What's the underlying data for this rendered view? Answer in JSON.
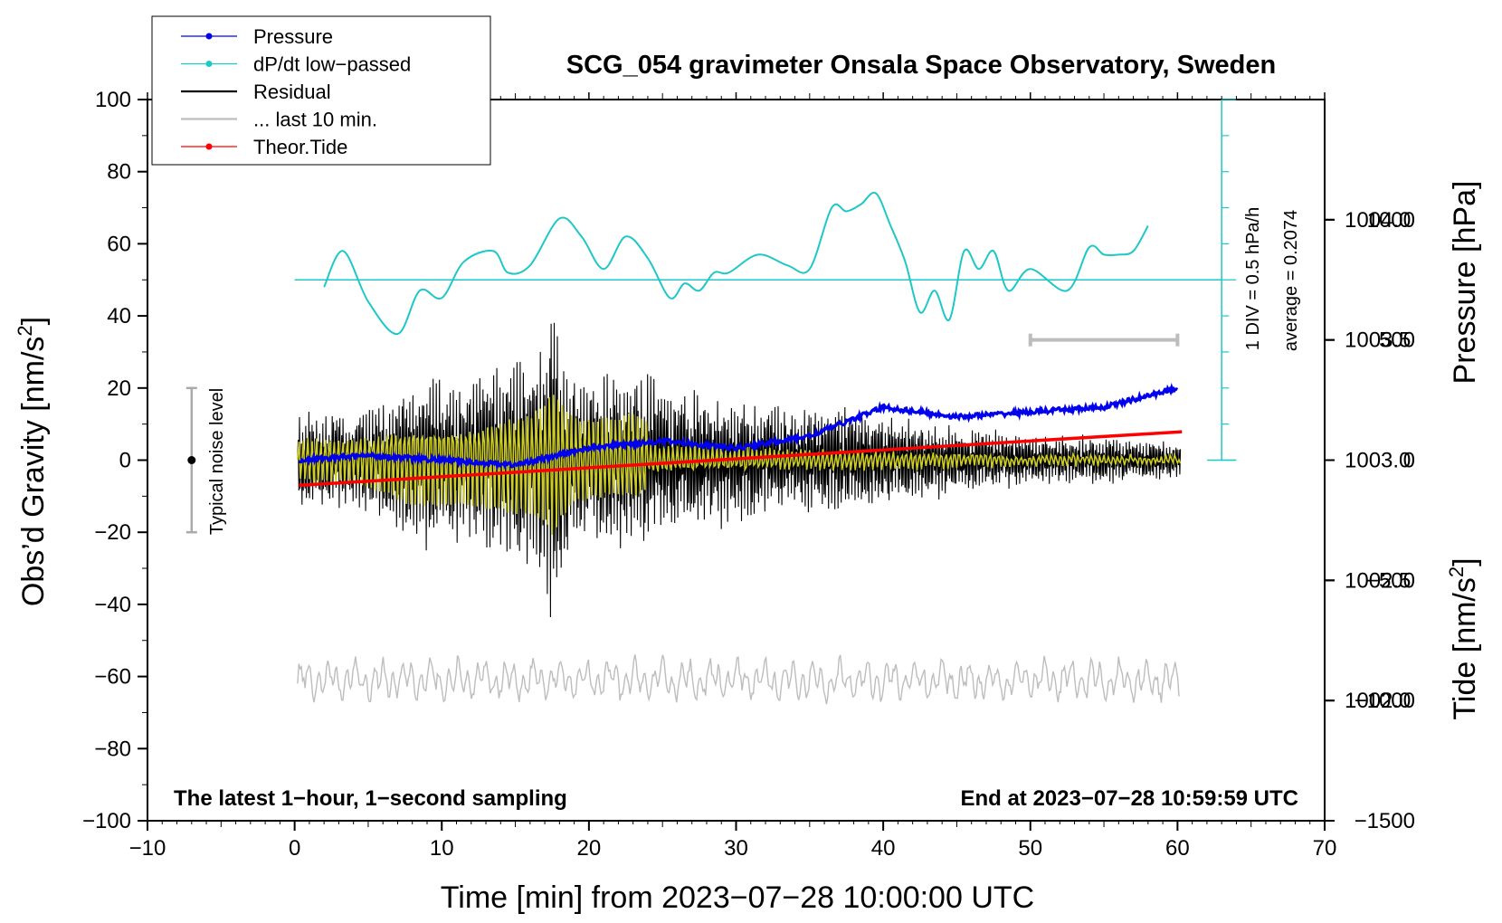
{
  "chart_data": {
    "type": "line",
    "title": "SCG_054 gravimeter Onsala Space Observatory, Sweden",
    "xlabel": "Time [min] from 2023−07−28 10:00:00 UTC",
    "ylabel_left_main": "Obs’d Gravity [nm/s",
    "ylabel_left_sup": "2",
    "ylabel_left_end": "]",
    "ylabel_right_pressure": "Pressure [hPa]",
    "ylabel_right_tide_main": "Tide [nm/s",
    "ylabel_right_tide_sup": "2",
    "ylabel_right_tide_end": "]",
    "xlim": [
      -10,
      70
    ],
    "ylim_left": [
      -100,
      100
    ],
    "ylim_pressure": [
      1001.5,
      1004.5
    ],
    "ylim_tide": [
      -1500,
      1500
    ],
    "x_ticks": [
      {
        "v": -10,
        "label": "−10"
      },
      {
        "v": 0,
        "label": "0"
      },
      {
        "v": 10,
        "label": "10"
      },
      {
        "v": 20,
        "label": "20"
      },
      {
        "v": 30,
        "label": "30"
      },
      {
        "v": 40,
        "label": "40"
      },
      {
        "v": 50,
        "label": "50"
      },
      {
        "v": 60,
        "label": "60"
      },
      {
        "v": 70,
        "label": "70"
      }
    ],
    "y_ticks_left": [
      {
        "v": 100,
        "label": "100"
      },
      {
        "v": 80,
        "label": "80"
      },
      {
        "v": 60,
        "label": "60"
      },
      {
        "v": 40,
        "label": "40"
      },
      {
        "v": 20,
        "label": "20"
      },
      {
        "v": 0,
        "label": "0"
      },
      {
        "v": -20,
        "label": "−20"
      },
      {
        "v": -40,
        "label": "−40"
      },
      {
        "v": -60,
        "label": "−60"
      },
      {
        "v": -80,
        "label": "−80"
      },
      {
        "v": -100,
        "label": "−100"
      }
    ],
    "y_ticks_pressure": [
      {
        "v": 1004.0,
        "label": "1004.0"
      },
      {
        "v": 1003.5,
        "label": "1003.5"
      },
      {
        "v": 1003.0,
        "label": "1003.0"
      },
      {
        "v": 1002.5,
        "label": "1002.5"
      },
      {
        "v": 1002.0,
        "label": "1002.0"
      }
    ],
    "y_ticks_tide": [
      {
        "v": 1000,
        "label": "1000"
      },
      {
        "v": 500,
        "label": "500"
      },
      {
        "v": 0,
        "label": "0"
      },
      {
        "v": -500,
        "label": "−500"
      },
      {
        "v": -1000,
        "label": "−1000"
      },
      {
        "v": -1500,
        "label": "−1500"
      }
    ],
    "legend": {
      "location": "top-left",
      "entries": [
        {
          "label": "Pressure",
          "color": "#0000ee",
          "marker": true
        },
        {
          "label": "dP/dt low−passed",
          "color": "#1fc7c7",
          "marker": true
        },
        {
          "label": "Residual",
          "color": "#000000",
          "marker": false
        },
        {
          "label": "... last 10 min.",
          "color": "#bdbdbd",
          "marker": false
        },
        {
          "label": "Theor.Tide",
          "color": "#ff0000",
          "marker": true
        }
      ]
    },
    "series": [
      {
        "name": "Pressure",
        "color": "#0000ee",
        "axis": "pressure",
        "x": [
          0.3,
          5,
          10,
          15,
          20,
          25,
          30,
          35,
          40,
          45,
          50,
          55,
          60
        ],
        "y": [
          1003.0,
          1003.02,
          1003.0,
          1002.98,
          1003.05,
          1003.08,
          1003.05,
          1003.1,
          1003.22,
          1003.18,
          1003.2,
          1003.22,
          1003.3
        ]
      },
      {
        "name": "dP/dt low−passed",
        "color": "#1fc7c7",
        "axis": "left",
        "x": [
          2.0,
          3.3,
          5.0,
          7.0,
          8.5,
          10.0,
          11.5,
          13.5,
          14.5,
          16.0,
          18.0,
          19.5,
          21.0,
          22.5,
          24.0,
          25.5,
          26.5,
          27.5,
          28.5,
          29.5,
          31.5,
          33.5,
          35.0,
          36.5,
          37.5,
          38.5,
          39.5,
          40.5,
          41.5,
          42.5,
          43.5,
          44.5,
          45.5,
          46.5,
          47.5,
          48.5,
          50.0,
          52.5,
          54.0,
          55.0,
          56.0,
          57.0,
          58.0
        ],
        "y": [
          48,
          58,
          44,
          35,
          47,
          45,
          55,
          58,
          52,
          54,
          67,
          62,
          53,
          62,
          56,
          45,
          49,
          47,
          52,
          52,
          57,
          54,
          53,
          70,
          69,
          71,
          74,
          65,
          55,
          41,
          47,
          39,
          58,
          53,
          58,
          47,
          53,
          47,
          59,
          57,
          57,
          58,
          65
        ]
      },
      {
        "name": "Residual",
        "color": "#000000",
        "axis": "left",
        "x": [
          0,
          4,
          8,
          12,
          14,
          16,
          17,
          17.5,
          18,
          19,
          20,
          22,
          23,
          24,
          26,
          28,
          30,
          34,
          36,
          40,
          45,
          50,
          55,
          60
        ],
        "y": [
          14,
          14,
          25,
          25,
          30,
          32,
          38,
          48,
          38,
          28,
          25,
          25,
          28,
          24,
          20,
          20,
          18,
          15,
          16,
          14,
          10,
          7,
          7,
          5
        ]
      },
      {
        "name": "Theor.Tide",
        "color": "#ff0000",
        "axis": "tide",
        "x": [
          0.3,
          60.3
        ],
        "y": [
          -105,
          118
        ]
      }
    ],
    "annotations": {
      "noise_bar_label": "Typical noise level",
      "noise_bar": {
        "x": -7,
        "y_low": -20,
        "y_high": 20,
        "center": 0
      },
      "scale_bar_x": [
        50,
        60
      ],
      "scale_bar_tide": 500,
      "div_label": "1 DIV = 0.5 hPa/h",
      "average_label": "average = 0.2074",
      "footer_left": "The latest 1−hour, 1−second sampling",
      "footer_right": "End at 2023−07−28 10:59:59 UTC"
    }
  }
}
